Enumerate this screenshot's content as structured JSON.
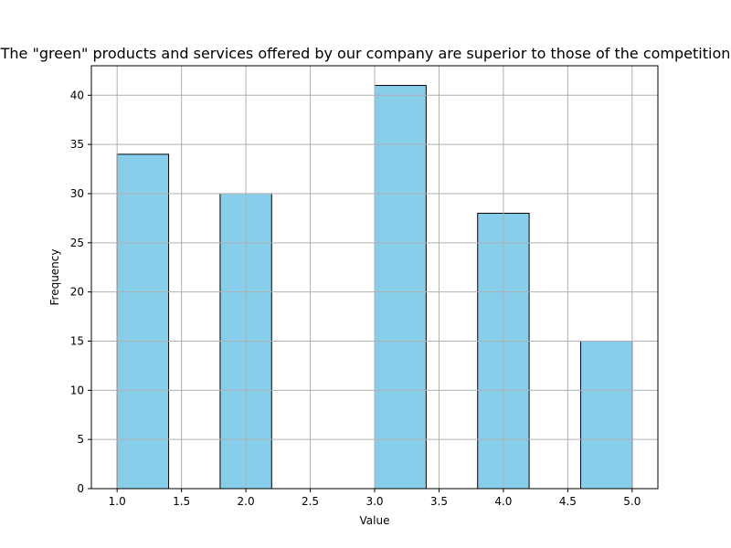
{
  "chart_data": {
    "type": "bar",
    "title": "The \"green\" products and services offered by our company are superior to those of the competition",
    "xlabel": "Value",
    "ylabel": "Frequency",
    "bins": [
      {
        "start": 1.0,
        "end": 1.4,
        "value": 34
      },
      {
        "start": 1.8,
        "end": 2.2,
        "value": 30
      },
      {
        "start": 3.0,
        "end": 3.4,
        "value": 41
      },
      {
        "start": 3.8,
        "end": 4.2,
        "value": 28
      },
      {
        "start": 4.6,
        "end": 5.0,
        "value": 15
      }
    ],
    "xlim": [
      0.8,
      5.2
    ],
    "ylim": [
      0,
      43
    ],
    "xticks": [
      1.0,
      1.5,
      2.0,
      2.5,
      3.0,
      3.5,
      4.0,
      4.5,
      5.0
    ],
    "xtick_labels": [
      "1.0",
      "1.5",
      "2.0",
      "2.5",
      "3.0",
      "3.5",
      "4.0",
      "4.5",
      "5.0"
    ],
    "yticks": [
      0,
      5,
      10,
      15,
      20,
      25,
      30,
      35,
      40
    ],
    "ytick_labels": [
      "0",
      "5",
      "10",
      "15",
      "20",
      "25",
      "30",
      "35",
      "40"
    ],
    "grid": true,
    "bar_color": "#87ceeb",
    "edge_color": "#000000"
  }
}
